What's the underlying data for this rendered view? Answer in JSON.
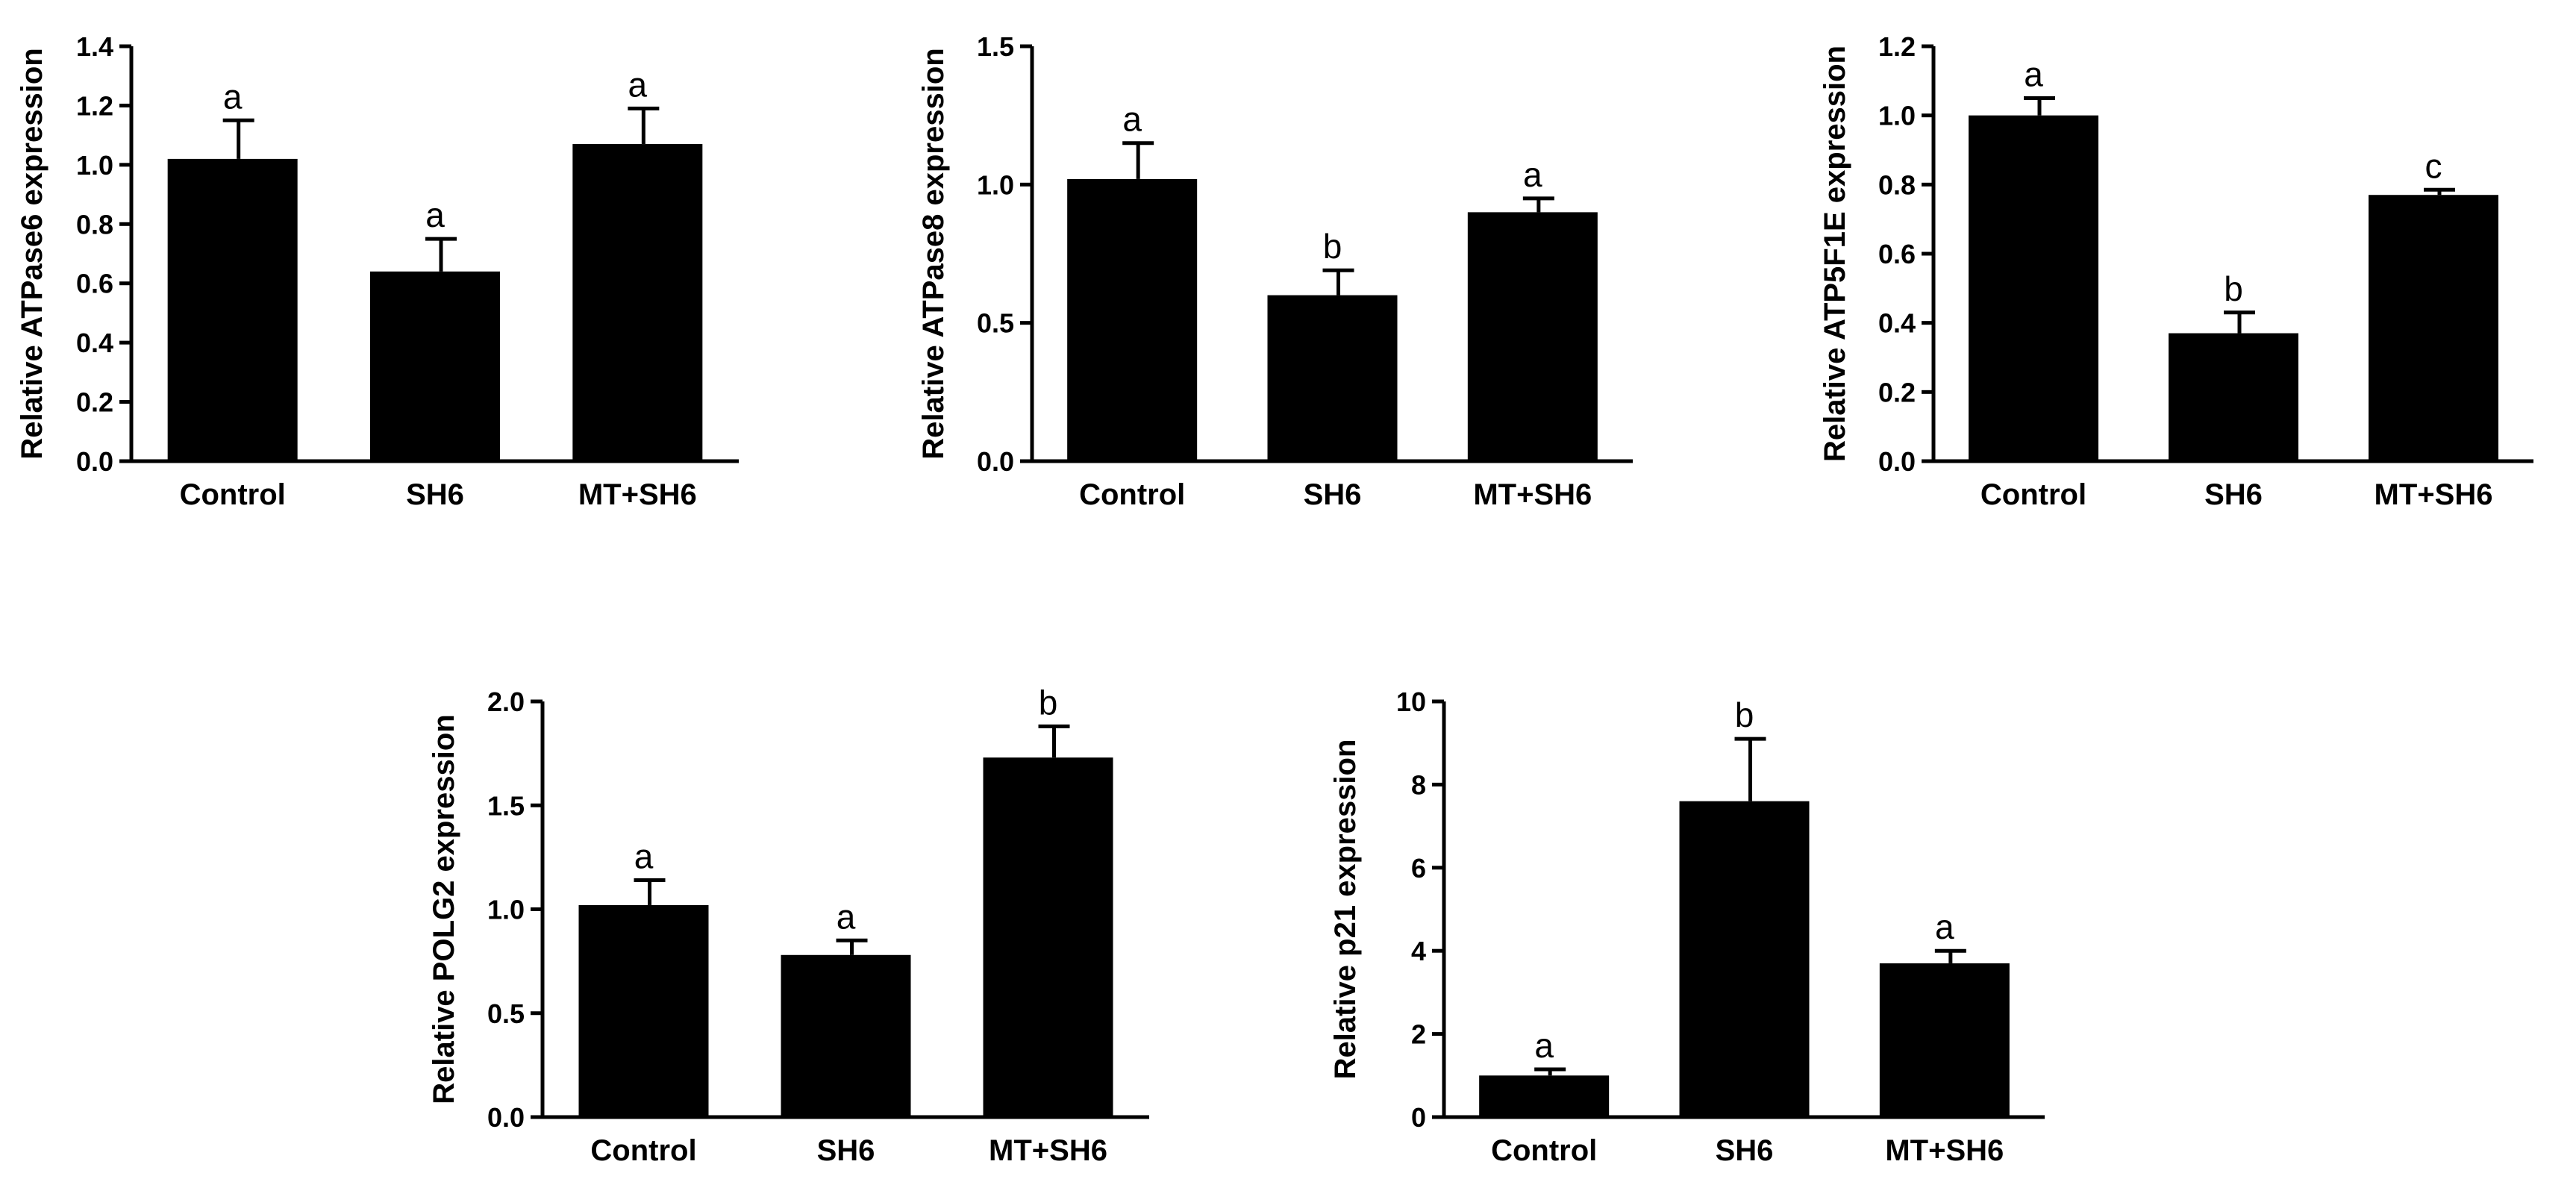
{
  "chart_data": [
    {
      "type": "bar",
      "title": "",
      "xlabel": "",
      "ylabel": "Relative ATPase6 expression",
      "categories": [
        "Control",
        "SH6",
        "MT+SH6"
      ],
      "values": [
        1.02,
        0.64,
        1.07
      ],
      "errors": [
        0.13,
        0.11,
        0.12
      ],
      "significance": [
        "a",
        "a",
        "a"
      ],
      "ylim": [
        0,
        1.4
      ],
      "yticks": [
        "0.0",
        "0.2",
        "0.4",
        "0.6",
        "0.8",
        "1.0",
        "1.2",
        "1.4"
      ]
    },
    {
      "type": "bar",
      "title": "",
      "xlabel": "",
      "ylabel": "Relative ATPase8 expression",
      "categories": [
        "Control",
        "SH6",
        "MT+SH6"
      ],
      "values": [
        1.02,
        0.6,
        0.9
      ],
      "errors": [
        0.13,
        0.09,
        0.05
      ],
      "significance": [
        "a",
        "b",
        "a"
      ],
      "ylim": [
        0,
        1.5
      ],
      "yticks": [
        "0.0",
        "0.5",
        "1.0",
        "1.5"
      ]
    },
    {
      "type": "bar",
      "title": "",
      "xlabel": "",
      "ylabel": "Relative ATP5F1E expression",
      "categories": [
        "Control",
        "SH6",
        "MT+SH6"
      ],
      "values": [
        1.0,
        0.37,
        0.77
      ],
      "errors": [
        0.05,
        0.06,
        0.015
      ],
      "significance": [
        "a",
        "b",
        "c"
      ],
      "ylim": [
        0,
        1.2
      ],
      "yticks": [
        "0.0",
        "0.2",
        "0.4",
        "0.6",
        "0.8",
        "1.0",
        "1.2"
      ]
    },
    {
      "type": "bar",
      "title": "",
      "xlabel": "",
      "ylabel": "Relative POLG2 expression",
      "categories": [
        "Control",
        "SH6",
        "MT+SH6"
      ],
      "values": [
        1.02,
        0.78,
        1.73
      ],
      "errors": [
        0.12,
        0.07,
        0.15
      ],
      "significance": [
        "a",
        "a",
        "b"
      ],
      "ylim": [
        0,
        2.0
      ],
      "yticks": [
        "0.0",
        "0.5",
        "1.0",
        "1.5",
        "2.0"
      ]
    },
    {
      "type": "bar",
      "title": "",
      "xlabel": "",
      "ylabel": "Relative p21 expression",
      "categories": [
        "Control",
        "SH6",
        "MT+SH6"
      ],
      "values": [
        1.0,
        7.6,
        3.7
      ],
      "errors": [
        0.15,
        1.5,
        0.3
      ],
      "significance": [
        "a",
        "b",
        "a"
      ],
      "ylim": [
        0,
        10
      ],
      "yticks": [
        "0",
        "2",
        "4",
        "6",
        "8",
        "10"
      ]
    }
  ]
}
